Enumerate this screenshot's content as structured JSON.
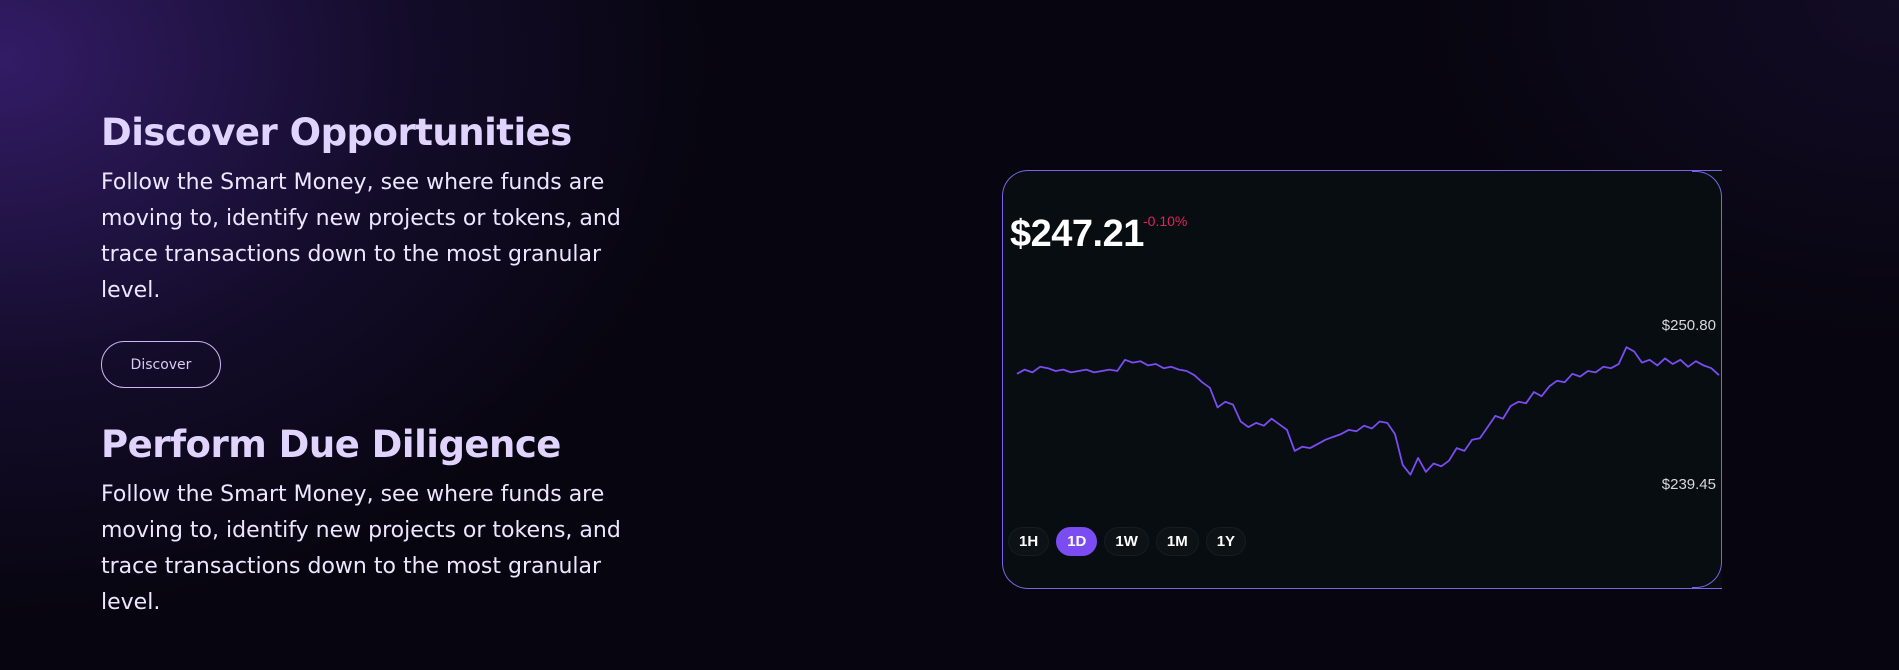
{
  "sections": [
    {
      "title": "Discover Opportunities",
      "body": "Follow the Smart Money, see where funds are moving to, identify new projects or tokens, and trace transactions down to the most granular level.",
      "button_label": "Discover"
    },
    {
      "title": "Perform Due Diligence",
      "body": "Follow the Smart Money, see where funds are moving to, identify new projects or tokens, and trace transactions down to the most granular level."
    }
  ],
  "price_card": {
    "price": "$247.21",
    "change": "-0.10%",
    "high_label": "$250.80",
    "low_label": "$239.45",
    "timeframes": [
      "1H",
      "1D",
      "1W",
      "1M",
      "1Y"
    ],
    "active_timeframe": "1D",
    "line_color": "#7b4cf2",
    "change_color": "#e0245e"
  },
  "chart_data": {
    "type": "line",
    "title": "",
    "xlabel": "",
    "ylabel": "",
    "ylim": [
      239.45,
      250.8
    ],
    "grid": false,
    "series": [
      {
        "values": [
          247.6,
          247.9,
          247.7,
          248.1,
          248.0,
          247.8,
          247.9,
          247.7,
          247.8,
          247.9,
          247.7,
          247.8,
          247.9,
          247.8,
          248.6,
          248.4,
          248.5,
          248.2,
          248.3,
          248.0,
          248.1,
          247.9,
          247.8,
          247.5,
          247.0,
          246.6,
          245.2,
          245.6,
          245.4,
          244.2,
          243.8,
          244.1,
          243.9,
          244.4,
          244.0,
          243.6,
          242.1,
          242.4,
          242.3,
          242.6,
          242.9,
          243.1,
          243.3,
          243.6,
          243.5,
          243.9,
          243.7,
          244.2,
          244.1,
          243.3,
          241.1,
          240.4,
          241.6,
          240.6,
          241.2,
          241.0,
          241.4,
          242.3,
          242.1,
          242.9,
          243.0,
          243.8,
          244.6,
          244.4,
          245.3,
          245.6,
          245.5,
          246.3,
          246.0,
          246.7,
          247.1,
          247.0,
          247.6,
          247.4,
          247.8,
          247.7,
          248.1,
          248.0,
          248.3,
          249.5,
          249.2,
          248.4,
          248.6,
          248.2,
          248.7,
          248.3,
          248.6,
          248.1,
          248.5,
          248.2,
          248.0,
          247.5
        ]
      }
    ]
  }
}
